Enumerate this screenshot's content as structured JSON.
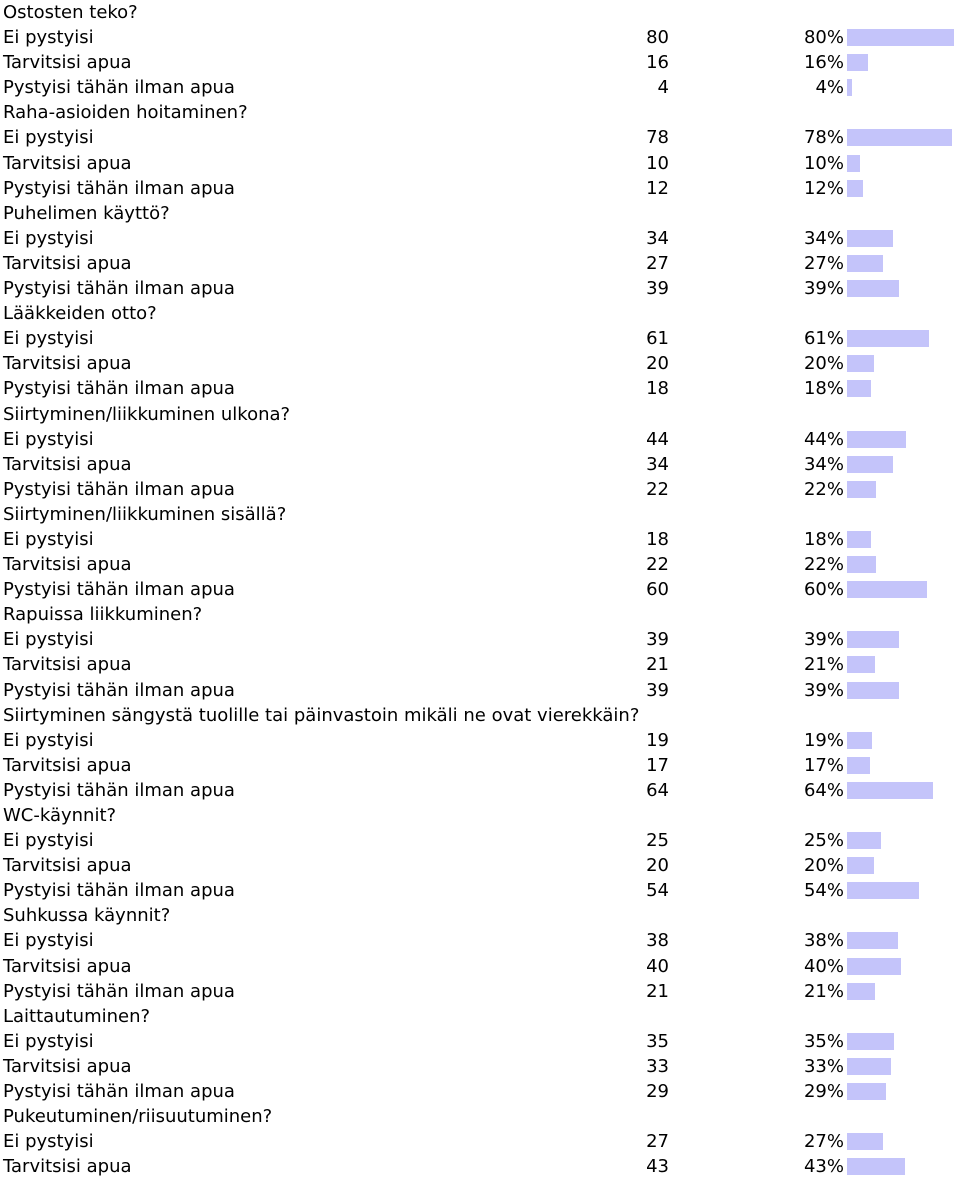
{
  "bar_color": "#c4c4fa",
  "questions": [
    {
      "title": "Ostosten teko?",
      "options": [
        {
          "label": "Ei pystyisi",
          "count": "80",
          "pct": "80%",
          "value": 80
        },
        {
          "label": "Tarvitsisi apua",
          "count": "16",
          "pct": "16%",
          "value": 16
        },
        {
          "label": "Pystyisi tähän ilman apua",
          "count": "4",
          "pct": "4%",
          "value": 4
        }
      ]
    },
    {
      "title": "Raha-asioiden hoitaminen?",
      "options": [
        {
          "label": "Ei pystyisi",
          "count": "78",
          "pct": "78%",
          "value": 78
        },
        {
          "label": "Tarvitsisi apua",
          "count": "10",
          "pct": "10%",
          "value": 10
        },
        {
          "label": "Pystyisi tähän ilman apua",
          "count": "12",
          "pct": "12%",
          "value": 12
        }
      ]
    },
    {
      "title": "Puhelimen käyttö?",
      "options": [
        {
          "label": "Ei pystyisi",
          "count": "34",
          "pct": "34%",
          "value": 34
        },
        {
          "label": "Tarvitsisi apua",
          "count": "27",
          "pct": "27%",
          "value": 27
        },
        {
          "label": "Pystyisi tähän ilman apua",
          "count": "39",
          "pct": "39%",
          "value": 39
        }
      ]
    },
    {
      "title": "Lääkkeiden otto?",
      "options": [
        {
          "label": "Ei pystyisi",
          "count": "61",
          "pct": "61%",
          "value": 61
        },
        {
          "label": "Tarvitsisi apua",
          "count": "20",
          "pct": "20%",
          "value": 20
        },
        {
          "label": "Pystyisi tähän ilman apua",
          "count": "18",
          "pct": "18%",
          "value": 18
        }
      ]
    },
    {
      "title": "Siirtyminen/liikkuminen ulkona?",
      "options": [
        {
          "label": "Ei pystyisi",
          "count": "44",
          "pct": "44%",
          "value": 44
        },
        {
          "label": "Tarvitsisi apua",
          "count": "34",
          "pct": "34%",
          "value": 34
        },
        {
          "label": "Pystyisi tähän ilman apua",
          "count": "22",
          "pct": "22%",
          "value": 22
        }
      ]
    },
    {
      "title": "Siirtyminen/liikkuminen sisällä?",
      "options": [
        {
          "label": "Ei pystyisi",
          "count": "18",
          "pct": "18%",
          "value": 18
        },
        {
          "label": "Tarvitsisi apua",
          "count": "22",
          "pct": "22%",
          "value": 22
        },
        {
          "label": "Pystyisi tähän ilman apua",
          "count": "60",
          "pct": "60%",
          "value": 60
        }
      ]
    },
    {
      "title": "Rapuissa liikkuminen?",
      "options": [
        {
          "label": "Ei pystyisi",
          "count": "39",
          "pct": "39%",
          "value": 39
        },
        {
          "label": "Tarvitsisi apua",
          "count": "21",
          "pct": "21%",
          "value": 21
        },
        {
          "label": "Pystyisi tähän ilman apua",
          "count": "39",
          "pct": "39%",
          "value": 39
        }
      ]
    },
    {
      "title": "Siirtyminen sängystä tuolille tai päinvastoin mikäli ne ovat vierekkäin?",
      "options": [
        {
          "label": "Ei pystyisi",
          "count": "19",
          "pct": "19%",
          "value": 19
        },
        {
          "label": "Tarvitsisi apua",
          "count": "17",
          "pct": "17%",
          "value": 17
        },
        {
          "label": "Pystyisi tähän ilman apua",
          "count": "64",
          "pct": "64%",
          "value": 64
        }
      ]
    },
    {
      "title": "WC-käynnit?",
      "options": [
        {
          "label": "Ei pystyisi",
          "count": "25",
          "pct": "25%",
          "value": 25
        },
        {
          "label": "Tarvitsisi apua",
          "count": "20",
          "pct": "20%",
          "value": 20
        },
        {
          "label": "Pystyisi tähän ilman apua",
          "count": "54",
          "pct": "54%",
          "value": 54
        }
      ]
    },
    {
      "title": "Suhkussa käynnit?",
      "options": [
        {
          "label": "Ei pystyisi",
          "count": "38",
          "pct": "38%",
          "value": 38
        },
        {
          "label": "Tarvitsisi apua",
          "count": "40",
          "pct": "40%",
          "value": 40
        },
        {
          "label": "Pystyisi tähän ilman apua",
          "count": "21",
          "pct": "21%",
          "value": 21
        }
      ]
    },
    {
      "title": "Laittautuminen?",
      "options": [
        {
          "label": "Ei pystyisi",
          "count": "35",
          "pct": "35%",
          "value": 35
        },
        {
          "label": "Tarvitsisi apua",
          "count": "33",
          "pct": "33%",
          "value": 33
        },
        {
          "label": "Pystyisi tähän ilman apua",
          "count": "29",
          "pct": "29%",
          "value": 29
        }
      ]
    },
    {
      "title": "Pukeutuminen/riisuutuminen?",
      "options": [
        {
          "label": "Ei pystyisi",
          "count": "27",
          "pct": "27%",
          "value": 27
        },
        {
          "label": "Tarvitsisi apua",
          "count": "43",
          "pct": "43%",
          "value": 43
        }
      ]
    }
  ]
}
